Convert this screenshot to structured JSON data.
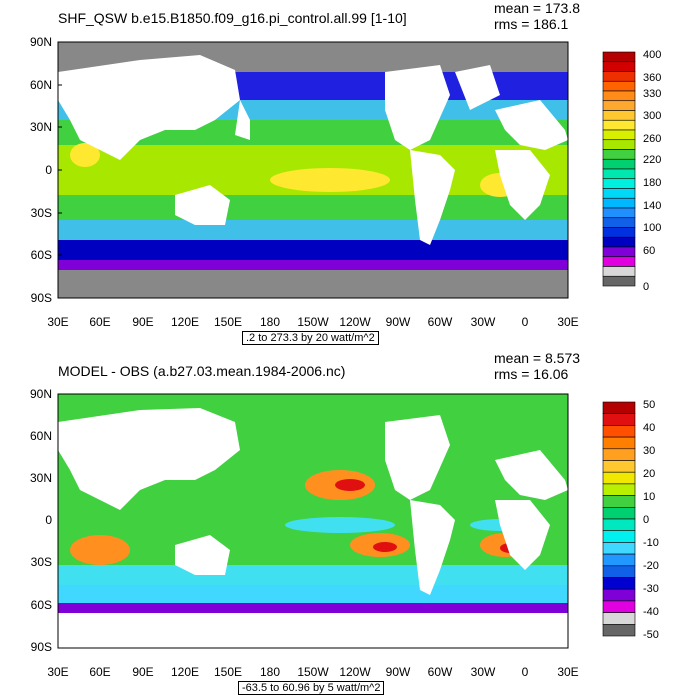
{
  "panels": [
    {
      "title": "SHF_QSW b.e15.B1850.f09_g16.pi_control.all.99 [1-10]",
      "mean_label": "mean = 173.8",
      "rms_label": "rms = 186.1",
      "contour_info": ".2 to 273.3 by 20 watt/m^2",
      "lat_labels": [
        "90N",
        "60N",
        "30N",
        "0",
        "30S",
        "60S",
        "90S"
      ],
      "lon_labels": [
        "30E",
        "60E",
        "90E",
        "120E",
        "150E",
        "180",
        "150W",
        "120W",
        "90W",
        "60W",
        "30W",
        "0",
        "30E"
      ],
      "colorbar_labels": [
        "400",
        "360",
        "330",
        "300",
        "260",
        "220",
        "180",
        "140",
        "100",
        "60",
        "0"
      ],
      "colorbar_colors": [
        "#b40000",
        "#d20000",
        "#ee3000",
        "#ff6400",
        "#ff8c18",
        "#ffa830",
        "#ffc830",
        "#ffe830",
        "#d8f000",
        "#a8e800",
        "#40d040",
        "#00d070",
        "#00e8b0",
        "#00f0e0",
        "#00d8f8",
        "#00b8ff",
        "#2090ff",
        "#1060e8",
        "#0030e0",
        "#0000c0",
        "#8000d8",
        "#e000e0",
        "#d8d8d8",
        "#666666"
      ],
      "value_colors": {
        "pole": "#888888",
        "highlat": "#2020e0",
        "midlat": "#40c0e8",
        "subtrop": "#40d040",
        "tropic": "#a8e800",
        "max": "#ffe830"
      }
    },
    {
      "title": "MODEL - OBS (a.b27.03.mean.1984-2006.nc)",
      "mean_label": "mean = 8.573",
      "rms_label": "rms = 16.06",
      "contour_info": "-63.5 to 60.96 by 5 watt/m^2",
      "lat_labels": [
        "90N",
        "60N",
        "30N",
        "0",
        "30S",
        "60S",
        "90S"
      ],
      "lon_labels": [
        "30E",
        "60E",
        "90E",
        "120E",
        "150E",
        "180",
        "150W",
        "120W",
        "90W",
        "60W",
        "30W",
        "0",
        "30E"
      ],
      "colorbar_labels": [
        "50",
        "40",
        "30",
        "20",
        "10",
        "0",
        "-10",
        "-20",
        "-30",
        "-40",
        "-50"
      ],
      "colorbar_colors": [
        "#b40000",
        "#e01010",
        "#ff5000",
        "#ff8000",
        "#ffa020",
        "#ffc830",
        "#f0e800",
        "#b8f000",
        "#40d040",
        "#00d070",
        "#00e8c0",
        "#00f0f0",
        "#40d8ff",
        "#2098ff",
        "#1060e8",
        "#0000d0",
        "#8000d8",
        "#e000e0",
        "#d8d8d8",
        "#666666"
      ],
      "value_colors": {
        "bg": "#40d040",
        "pos": "#ff9020",
        "neg": "#40e0f0",
        "strongpos": "#e01010",
        "strongneg": "#0000d0"
      }
    }
  ]
}
